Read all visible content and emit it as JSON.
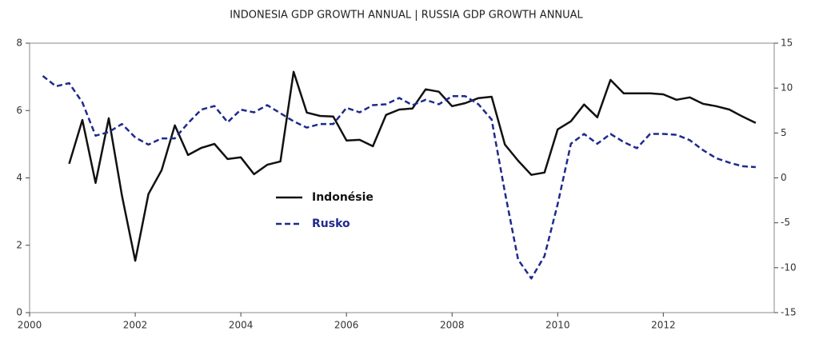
{
  "chart_data": {
    "type": "line",
    "title": "INDONESIA GDP GROWTH ANNUAL |  RUSSIA GDP GROWTH ANNUAL",
    "xlim": [
      2000,
      2014.1
    ],
    "xticks": [
      2000,
      2002,
      2004,
      2006,
      2008,
      2010,
      2012
    ],
    "ylim": [
      0,
      8
    ],
    "yticks": [
      0,
      2,
      4,
      6,
      8
    ],
    "y2lim": [
      -15,
      15
    ],
    "y2ticks": [
      -15,
      -10,
      -5,
      0,
      5,
      10,
      15
    ],
    "series": [
      {
        "name": "Indonésie",
        "color": "#111111",
        "dash": false,
        "axis": "y",
        "x": [
          2000.75,
          2001,
          2001.25,
          2001.5,
          2001.75,
          2002,
          2002.25,
          2002.5,
          2002.75,
          2003,
          2003.25,
          2003.5,
          2003.75,
          2004,
          2004.25,
          2004.5,
          2004.75,
          2005,
          2005.25,
          2005.5,
          2005.75,
          2006,
          2006.25,
          2006.5,
          2006.75,
          2007,
          2007.25,
          2007.5,
          2007.75,
          2008,
          2008.25,
          2008.5,
          2008.75,
          2009,
          2009.25,
          2009.5,
          2009.75,
          2010,
          2010.25,
          2010.5,
          2010.75,
          2011,
          2011.25,
          2011.5,
          2011.75,
          2012,
          2012.25,
          2012.5,
          2012.75,
          2013,
          2013.25,
          2013.5,
          2013.75
        ],
        "values": [
          4.42,
          5.72,
          3.85,
          5.77,
          3.47,
          1.54,
          3.52,
          4.23,
          5.56,
          4.68,
          4.89,
          5.01,
          4.56,
          4.61,
          4.11,
          4.39,
          4.49,
          7.15,
          5.94,
          5.84,
          5.82,
          5.11,
          5.13,
          4.94,
          5.87,
          6.03,
          6.06,
          6.63,
          6.56,
          6.13,
          6.22,
          6.37,
          6.41,
          4.99,
          4.51,
          4.09,
          4.16,
          5.44,
          5.68,
          6.18,
          5.8,
          6.91,
          6.51,
          6.51,
          6.51,
          6.48,
          6.32,
          6.39,
          6.2,
          6.13,
          6.03,
          5.82,
          5.63
        ]
      },
      {
        "name": "Rusko",
        "color": "#1f2a8c",
        "dash": true,
        "axis": "y2",
        "x": [
          2000.25,
          2000.5,
          2000.75,
          2001,
          2001.25,
          2001.5,
          2001.75,
          2002,
          2002.25,
          2002.5,
          2002.75,
          2003,
          2003.25,
          2003.5,
          2003.75,
          2004,
          2004.25,
          2004.5,
          2004.75,
          2005,
          2005.25,
          2005.5,
          2005.75,
          2006,
          2006.25,
          2006.5,
          2006.75,
          2007,
          2007.25,
          2007.5,
          2007.75,
          2008,
          2008.25,
          2008.5,
          2008.75,
          2009,
          2009.25,
          2009.5,
          2009.75,
          2010,
          2010.25,
          2010.5,
          2010.75,
          2011,
          2011.25,
          2011.5,
          2011.75,
          2012,
          2012.25,
          2012.5,
          2012.75,
          2013,
          2013.25,
          2013.5,
          2013.75
        ],
        "values": [
          11.35,
          10.2,
          10.55,
          8.4,
          4.7,
          5.1,
          6.0,
          4.5,
          3.7,
          4.4,
          4.4,
          6.1,
          7.6,
          8.0,
          6.2,
          7.6,
          7.3,
          8.1,
          7.2,
          6.3,
          5.6,
          6.0,
          6.0,
          7.8,
          7.3,
          8.1,
          8.2,
          8.9,
          8.1,
          8.7,
          8.2,
          9.1,
          9.1,
          8.2,
          6.5,
          -1.6,
          -9.1,
          -11.2,
          -8.7,
          -2.9,
          3.8,
          4.9,
          3.8,
          4.9,
          4.0,
          3.3,
          4.9,
          4.9,
          4.8,
          4.2,
          3.1,
          2.2,
          1.7,
          1.3,
          1.2
        ]
      }
    ]
  }
}
